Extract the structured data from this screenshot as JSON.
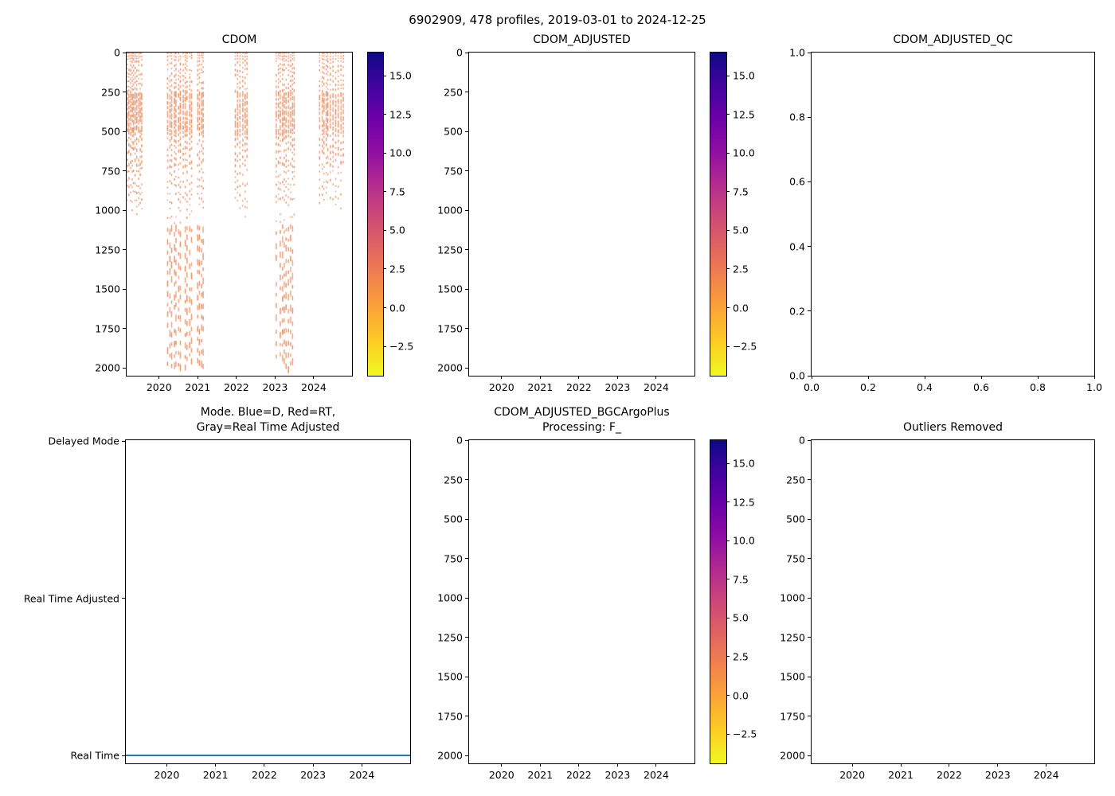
{
  "suptitle": "6902909, 478 profiles, 2019-03-01 to 2024-12-25",
  "colors": {
    "marker_orange": "#e28150",
    "mode_line_blue": "#1f77b4",
    "axis_black": "#000000"
  },
  "colormap_name": "plasma_r",
  "colormap_top_to_bottom": [
    "#0d0887",
    "#41049d",
    "#6a00a8",
    "#8f0da4",
    "#b12a90",
    "#cc4778",
    "#e16462",
    "#f2844b",
    "#fca636",
    "#fcce25",
    "#f0f921"
  ],
  "chart_data": [
    {
      "type": "scatter",
      "title": "CDOM",
      "x": {
        "axis_kind": "time_years",
        "min": 2019.16,
        "max": 2024.99,
        "tick_values": [
          2020,
          2021,
          2022,
          2023,
          2024
        ],
        "tick_labels": [
          "2020",
          "2021",
          "2022",
          "2023",
          "2024"
        ]
      },
      "y": {
        "axis_kind": "pressure_dbar",
        "min": 0,
        "max": 2050,
        "direction": "down",
        "tick_values": [
          0,
          250,
          500,
          750,
          1000,
          1250,
          1500,
          1750,
          2000
        ],
        "tick_labels": [
          "0",
          "250",
          "500",
          "750",
          "1000",
          "1250",
          "1500",
          "1750",
          "2000"
        ]
      },
      "colorbar": {
        "vmin": -4.4,
        "vmax": 16.5,
        "tick_values": [
          15.0,
          12.5,
          10.0,
          7.5,
          5.0,
          2.5,
          0.0,
          -2.5
        ],
        "tick_labels": [
          "15.0",
          "12.5",
          "10.0",
          "7.5",
          "5.0",
          "2.5",
          "0.0",
          "−2.5"
        ]
      },
      "scatter": {
        "seed": 42,
        "marker_color": "#e28150",
        "clusters": [
          {
            "t0": 2019.18,
            "t1": 2019.55,
            "n": 10,
            "deep": false
          },
          {
            "t0": 2020.22,
            "t1": 2020.84,
            "n": 12,
            "deep": true
          },
          {
            "t0": 2021.0,
            "t1": 2021.15,
            "n": 4,
            "deep": true
          },
          {
            "t0": 2021.97,
            "t1": 2022.28,
            "n": 6,
            "deep": false
          },
          {
            "t0": 2023.03,
            "t1": 2023.5,
            "n": 10,
            "deep": true
          },
          {
            "t0": 2024.16,
            "t1": 2024.42,
            "n": 6,
            "deep": false
          },
          {
            "t0": 2024.5,
            "t1": 2024.76,
            "n": 5,
            "deep": false
          }
        ],
        "depth_bands": [
          {
            "z0": 0,
            "z1": 35,
            "dash": [
              1.2,
              2.2
            ],
            "gap": [
              1,
              2.5
            ],
            "p": 0.95
          },
          {
            "z0": 35,
            "z1": 235,
            "dash": [
              1.5,
              3.5
            ],
            "gap": [
              2,
              5
            ],
            "p": 0.85
          },
          {
            "z0": 235,
            "z1": 500,
            "dash": [
              3,
              9
            ],
            "gap": [
              1,
              3
            ],
            "p": 0.97
          },
          {
            "z0": 500,
            "z1": 720,
            "dash": [
              2,
              4.5
            ],
            "gap": [
              3,
              6
            ],
            "p": 0.85
          },
          {
            "z0": 720,
            "z1": 950,
            "dash": [
              1.5,
              3
            ],
            "gap": [
              4,
              9
            ],
            "p": 0.75
          },
          {
            "z0": 950,
            "z1": 1080,
            "dash": [
              1.5,
              2.5
            ],
            "gap": [
              7,
              14
            ],
            "p": 0.55
          },
          {
            "z0": 1080,
            "z1": 2010,
            "dash": [
              4,
              9
            ],
            "gap": [
              5,
              11
            ],
            "p": 0.92
          }
        ]
      }
    },
    {
      "type": "empty",
      "title": "CDOM_ADJUSTED",
      "x": {
        "axis_kind": "time_years",
        "min": 2019.16,
        "max": 2024.99,
        "tick_values": [
          2020,
          2021,
          2022,
          2023,
          2024
        ],
        "tick_labels": [
          "2020",
          "2021",
          "2022",
          "2023",
          "2024"
        ]
      },
      "y": {
        "axis_kind": "pressure_dbar",
        "min": 0,
        "max": 2050,
        "direction": "down",
        "tick_values": [
          0,
          250,
          500,
          750,
          1000,
          1250,
          1500,
          1750,
          2000
        ],
        "tick_labels": [
          "0",
          "250",
          "500",
          "750",
          "1000",
          "1250",
          "1500",
          "1750",
          "2000"
        ]
      },
      "colorbar": {
        "vmin": -4.4,
        "vmax": 16.5,
        "tick_values": [
          15.0,
          12.5,
          10.0,
          7.5,
          5.0,
          2.5,
          0.0,
          -2.5
        ],
        "tick_labels": [
          "15.0",
          "12.5",
          "10.0",
          "7.5",
          "5.0",
          "2.5",
          "0.0",
          "−2.5"
        ]
      }
    },
    {
      "type": "empty",
      "title": "CDOM_ADJUSTED_QC",
      "x": {
        "axis_kind": "unit",
        "min": 0,
        "max": 1,
        "tick_values": [
          0,
          0.2,
          0.4,
          0.6,
          0.8,
          1.0
        ],
        "tick_labels": [
          "0.0",
          "0.2",
          "0.4",
          "0.6",
          "0.8",
          "1.0"
        ]
      },
      "y": {
        "axis_kind": "unit",
        "min": 0,
        "max": 1,
        "direction": "up",
        "tick_values": [
          0,
          0.2,
          0.4,
          0.6,
          0.8,
          1.0
        ],
        "tick_labels": [
          "0.0",
          "0.2",
          "0.4",
          "0.6",
          "0.8",
          "1.0"
        ]
      }
    },
    {
      "type": "line",
      "title": "Mode. Blue=D, Red=RT,\nGray=Real Time Adjusted",
      "x": {
        "axis_kind": "time_years",
        "min": 2019.16,
        "max": 2024.99,
        "tick_values": [
          2020,
          2021,
          2022,
          2023,
          2024
        ],
        "tick_labels": [
          "2020",
          "2021",
          "2022",
          "2023",
          "2024"
        ]
      },
      "y": {
        "axis_kind": "category",
        "category_labels": [
          "Delayed Mode",
          "Real Time Adjusted",
          "Real Time"
        ],
        "fractions": [
          0.003,
          0.489,
          0.9755
        ]
      },
      "hline": {
        "at_category": "Real Time",
        "fraction": 0.9755,
        "color": "#1f77b4",
        "t0": 2019.16,
        "t1": 2024.99
      }
    },
    {
      "type": "empty",
      "title": "CDOM_ADJUSTED_BGCArgoPlus\nProcessing: F_",
      "x": {
        "axis_kind": "time_years",
        "min": 2019.16,
        "max": 2024.99,
        "tick_values": [
          2020,
          2021,
          2022,
          2023,
          2024
        ],
        "tick_labels": [
          "2020",
          "2021",
          "2022",
          "2023",
          "2024"
        ]
      },
      "y": {
        "axis_kind": "pressure_dbar",
        "min": 0,
        "max": 2050,
        "direction": "down",
        "tick_values": [
          0,
          250,
          500,
          750,
          1000,
          1250,
          1500,
          1750,
          2000
        ],
        "tick_labels": [
          "0",
          "250",
          "500",
          "750",
          "1000",
          "1250",
          "1500",
          "1750",
          "2000"
        ]
      },
      "colorbar": {
        "vmin": -4.4,
        "vmax": 16.5,
        "tick_values": [
          15.0,
          12.5,
          10.0,
          7.5,
          5.0,
          2.5,
          0.0,
          -2.5
        ],
        "tick_labels": [
          "15.0",
          "12.5",
          "10.0",
          "7.5",
          "5.0",
          "2.5",
          "0.0",
          "−2.5"
        ]
      }
    },
    {
      "type": "empty",
      "title": "Outliers Removed",
      "x": {
        "axis_kind": "time_years",
        "min": 2019.16,
        "max": 2024.99,
        "tick_values": [
          2020,
          2021,
          2022,
          2023,
          2024
        ],
        "tick_labels": [
          "2020",
          "2021",
          "2022",
          "2023",
          "2024"
        ]
      },
      "y": {
        "axis_kind": "pressure_dbar",
        "min": 0,
        "max": 2050,
        "direction": "down",
        "tick_values": [
          0,
          250,
          500,
          750,
          1000,
          1250,
          1500,
          1750,
          2000
        ],
        "tick_labels": [
          "0",
          "250",
          "500",
          "750",
          "1000",
          "1250",
          "1500",
          "1750",
          "2000"
        ]
      }
    }
  ]
}
